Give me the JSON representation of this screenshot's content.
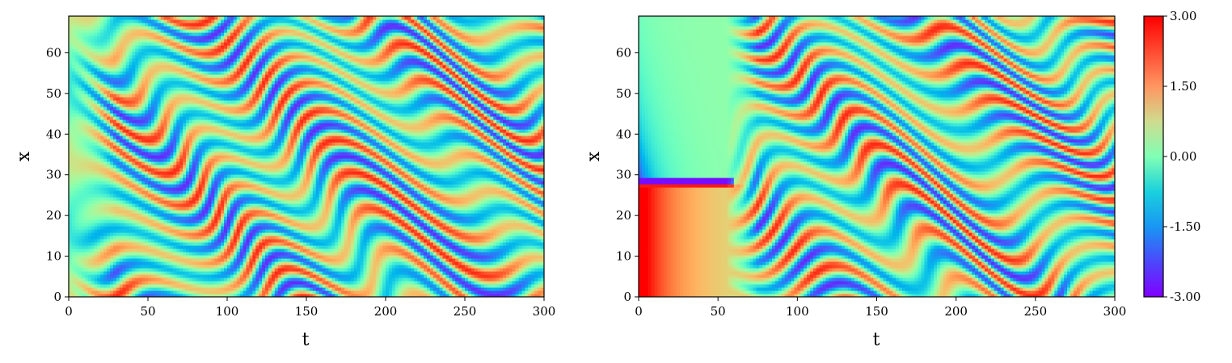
{
  "chart_data": [
    {
      "type": "heatmap",
      "title": "",
      "xlabel": "t",
      "ylabel": "x",
      "xlim": [
        0,
        300
      ],
      "ylim": [
        0,
        69
      ],
      "xticks": [
        "0",
        "50",
        "100",
        "150",
        "200",
        "250",
        "300"
      ],
      "yticks": [
        "0",
        "10",
        "20",
        "30",
        "40",
        "50",
        "60"
      ],
      "xtick_values": [
        0,
        50,
        100,
        150,
        200,
        250,
        300
      ],
      "ytick_values": [
        0,
        10,
        20,
        30,
        40,
        50,
        60
      ],
      "colormap": "rainbow",
      "pattern": "spatiotemporal chaotic stripes, chaotic from t=0"
    },
    {
      "type": "heatmap",
      "title": "",
      "xlabel": "t",
      "ylabel": "x",
      "xlim": [
        0,
        300
      ],
      "ylim": [
        0,
        69
      ],
      "xticks": [
        "0",
        "50",
        "100",
        "150",
        "200",
        "250",
        "300"
      ],
      "yticks": [
        "0",
        "10",
        "20",
        "30",
        "40",
        "50",
        "60"
      ],
      "xtick_values": [
        0,
        50,
        100,
        150,
        200,
        250,
        300
      ],
      "ytick_values": [
        0,
        10,
        20,
        30,
        40,
        50,
        60
      ],
      "colormap": "rainbow",
      "pattern": "smooth transient until t≈60 (front near x≈28), then spatiotemporal chaotic stripes"
    }
  ],
  "colorbar": {
    "vmin": -3.0,
    "vmax": 3.0,
    "tick_values": [
      3.0,
      1.5,
      0.0,
      -1.5,
      -3.0
    ],
    "ticks": [
      "3.00",
      "1.50",
      "0.00",
      "-1.50",
      "-3.00"
    ]
  }
}
